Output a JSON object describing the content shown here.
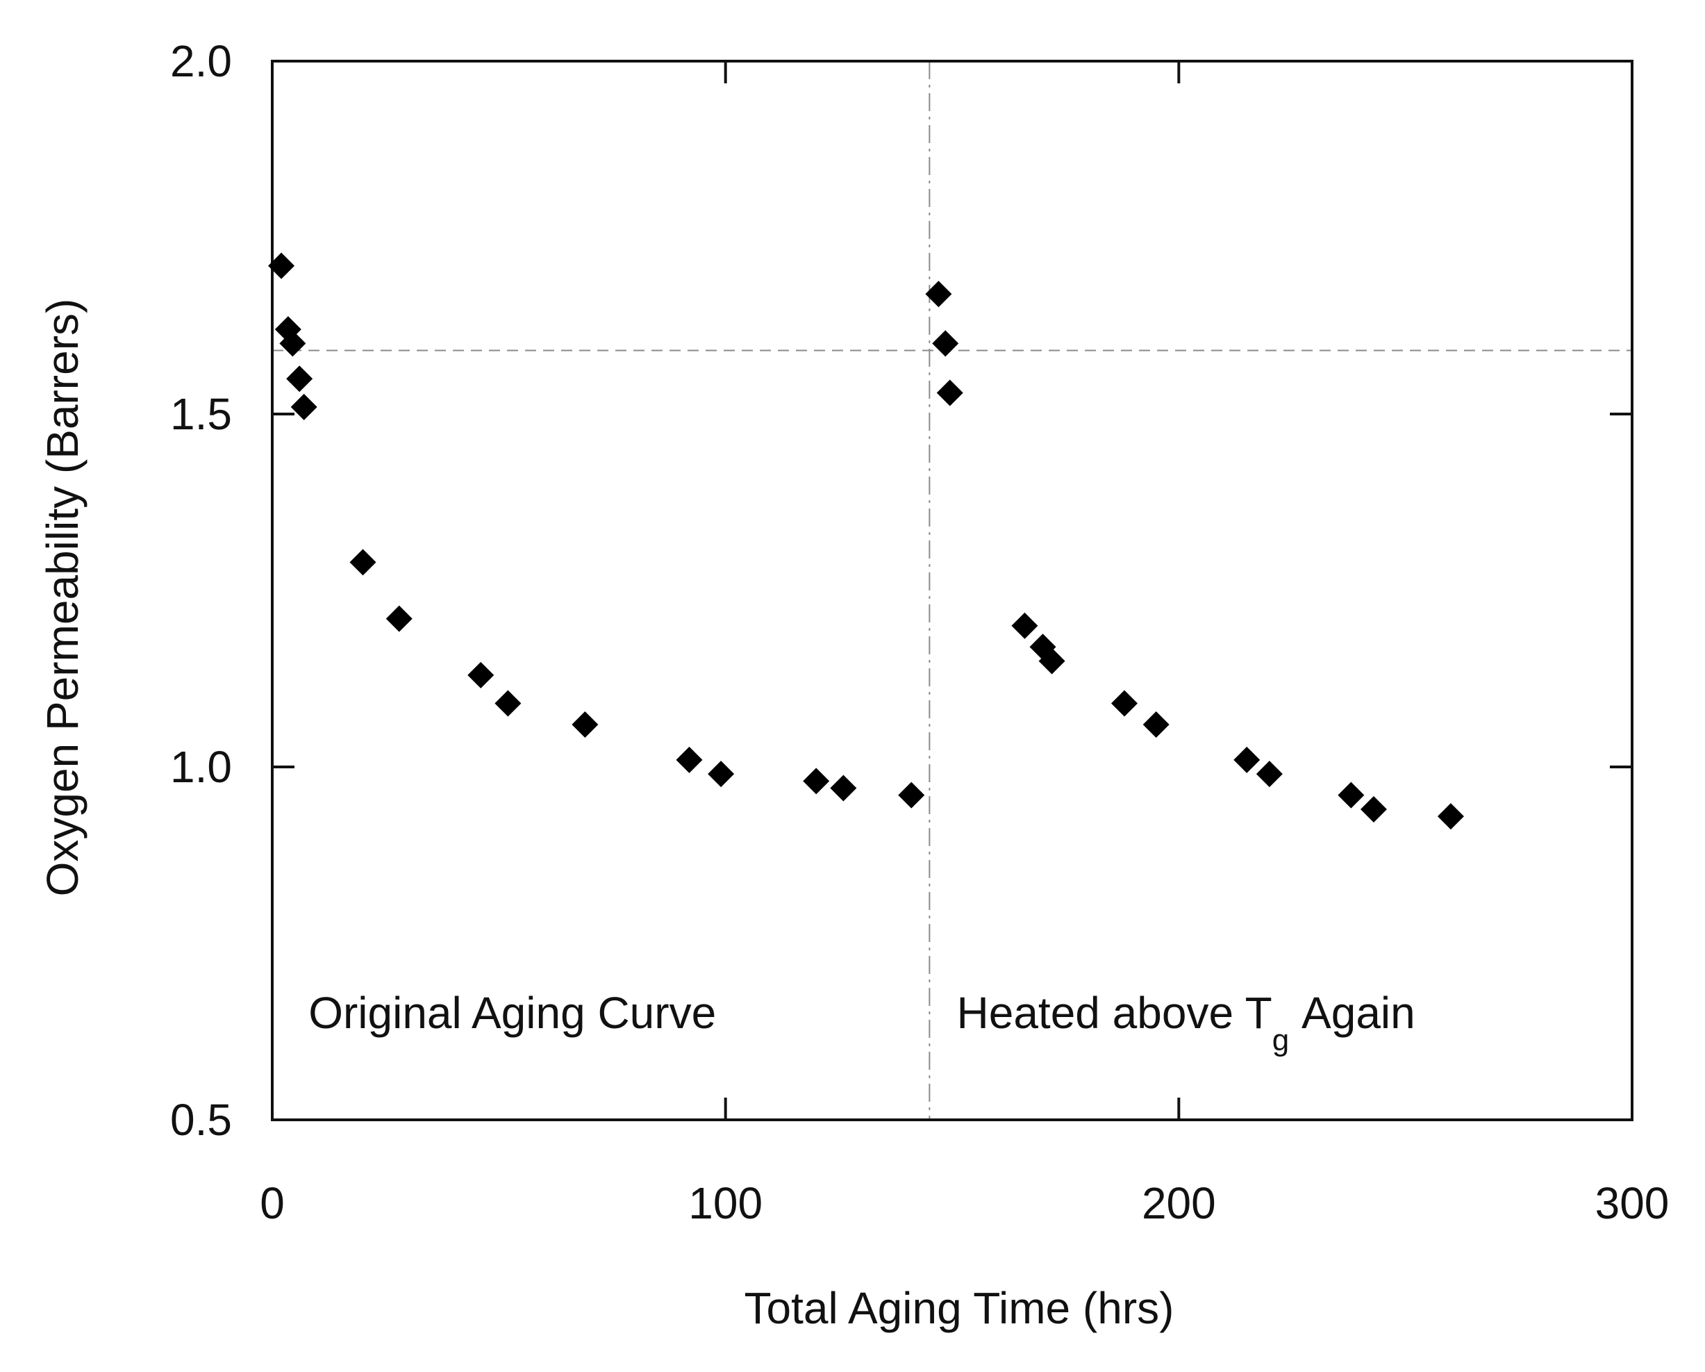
{
  "chart_data": {
    "type": "scatter",
    "title": "",
    "xlabel": "Total Aging Time (hrs)",
    "ylabel": "Oxygen Permeability (Barrers)",
    "xlim": [
      0,
      300
    ],
    "ylim": [
      0.5,
      2.0
    ],
    "x_ticks": [
      0,
      100,
      200,
      300
    ],
    "x_tick_labels": [
      "0",
      "100",
      "200",
      "300"
    ],
    "y_ticks": [
      0.5,
      1.0,
      1.5,
      2.0
    ],
    "y_tick_labels": [
      "0.5",
      "1.0",
      "1.5",
      "2.0"
    ],
    "grid": false,
    "marker": "diamond",
    "marker_color": "#000000",
    "series": [
      {
        "name": "Original Aging Curve",
        "points": [
          [
            2,
            1.71
          ],
          [
            3.5,
            1.62
          ],
          [
            4.5,
            1.6
          ],
          [
            6,
            1.55
          ],
          [
            7,
            1.51
          ],
          [
            20,
            1.29
          ],
          [
            28,
            1.21
          ],
          [
            46,
            1.13
          ],
          [
            52,
            1.09
          ],
          [
            69,
            1.06
          ],
          [
            92,
            1.01
          ],
          [
            99,
            0.99
          ],
          [
            120,
            0.98
          ],
          [
            126,
            0.97
          ],
          [
            141,
            0.96
          ]
        ]
      },
      {
        "name": "Heated above Tg Again",
        "points": [
          [
            147,
            1.67
          ],
          [
            148.5,
            1.6
          ],
          [
            149.5,
            1.53
          ],
          [
            166,
            1.2
          ],
          [
            170,
            1.17
          ],
          [
            172,
            1.15
          ],
          [
            188,
            1.09
          ],
          [
            195,
            1.06
          ],
          [
            215,
            1.01
          ],
          [
            220,
            0.99
          ],
          [
            238,
            0.96
          ],
          [
            243,
            0.94
          ],
          [
            260,
            0.93
          ]
        ]
      }
    ],
    "reference_lines": [
      {
        "orientation": "vertical",
        "x": 145,
        "style": "dash-dot"
      },
      {
        "orientation": "horizontal",
        "y": 1.59,
        "style": "dashed"
      }
    ],
    "annotations": [
      {
        "text": "Original Aging Curve",
        "x": 8,
        "y": 0.63
      },
      {
        "text": "Heated above T",
        "subscript": "g",
        "suffix": " Again",
        "x": 151,
        "y": 0.63
      }
    ]
  }
}
